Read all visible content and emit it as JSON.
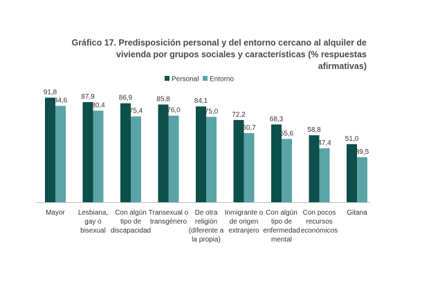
{
  "chart_data": {
    "type": "bar",
    "title": "Gráfico 17. Predisposición personal y del entorno cercano al alquiler de vivienda por grupos sociales y características (% respuestas afirmativas)",
    "title_lines": [
      "Gráfico 17. Predisposición personal y del entorno cercano al alquiler de",
      "vivienda por grupos sociales y características (% respuestas afirmativas)"
    ],
    "xlabel": "",
    "ylabel": "",
    "ylim": [
      0,
      100
    ],
    "grid": false,
    "legend": "top-center",
    "categories": [
      [
        "Mayor"
      ],
      [
        "Lesbiana,",
        "gay o",
        "bisexual"
      ],
      [
        "Con algún",
        "tipo de",
        "discapacidad"
      ],
      [
        "Transexual o",
        "transgénero"
      ],
      [
        "De otra",
        "religión",
        "(diferente a",
        "la propia)"
      ],
      [
        "Inmigrante o",
        "de origen",
        "extranjero"
      ],
      [
        "Con algún",
        "tipo de",
        "enfermedad",
        "mental"
      ],
      [
        "Con pocos",
        "recursos",
        "económicos"
      ],
      [
        "Gitana"
      ]
    ],
    "series": [
      {
        "name": "Personal",
        "color": "#0d4f4a",
        "values": [
          91.8,
          87.9,
          86.9,
          85.8,
          84.1,
          72.2,
          68.3,
          58.8,
          51.0
        ],
        "labels": [
          "91,8",
          "87,9",
          "86,9",
          "85,8",
          "84,1",
          "72,2",
          "68,3",
          "58,8",
          "51,0"
        ]
      },
      {
        "name": "Entorno",
        "color": "#5aa3a6",
        "values": [
          84.6,
          80.4,
          75.4,
          76.0,
          75.0,
          60.7,
          55.6,
          47.4,
          39.5
        ],
        "labels": [
          "84,6",
          "80,4",
          "75,4",
          "76,0",
          "75,0",
          "60,7",
          "55,6",
          "47,4",
          "39,5"
        ]
      }
    ]
  }
}
